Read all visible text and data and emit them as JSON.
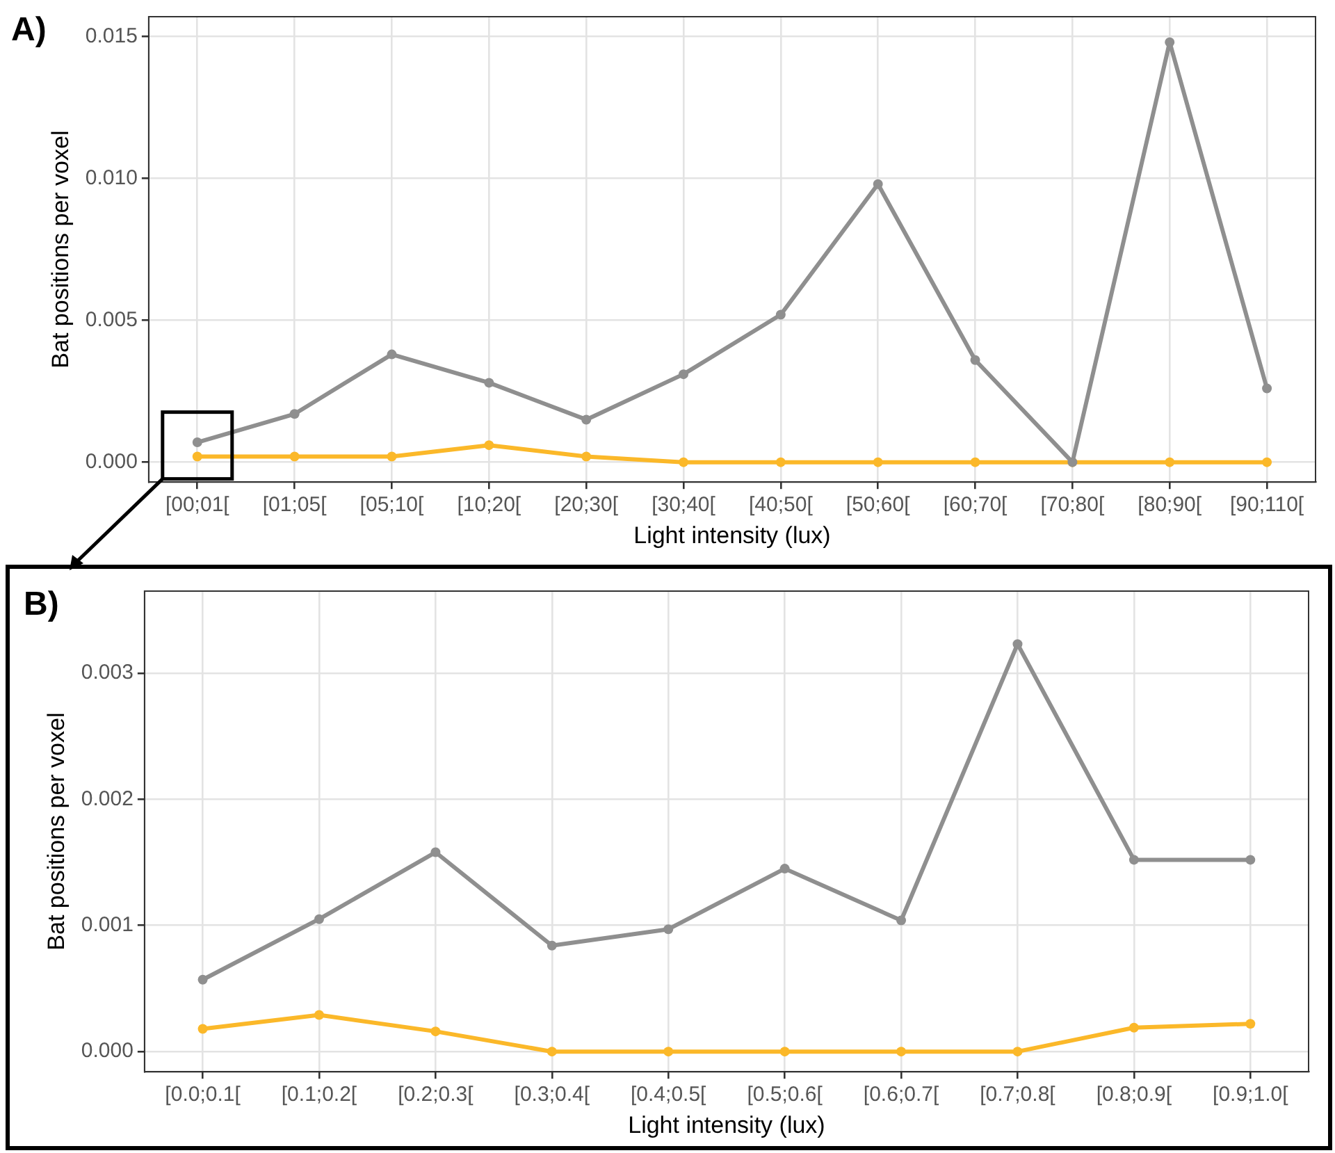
{
  "chart_data": [
    {
      "type": "line",
      "annotations": [
        "A)"
      ],
      "xlabel": "Light intensity (lux)",
      "ylabel": "Bat positions per voxel",
      "categories": [
        "[00;01[",
        "[01;05[",
        "[05;10[",
        "[10;20[",
        "[20;30[",
        "[30;40[",
        "[40;50[",
        "[50;60[",
        "[60;70[",
        "[70;80[",
        "[80;90[",
        "[90;110["
      ],
      "series": [
        {
          "color": "#8f8f8f",
          "values": [
            0.0007,
            0.0017,
            0.0038,
            0.0028,
            0.0015,
            0.0031,
            0.0052,
            0.0098,
            0.0036,
            0.0,
            0.0148,
            0.0026
          ]
        },
        {
          "color": "#fbb829",
          "values": [
            0.0002,
            0.0002,
            0.0002,
            0.0006,
            0.0002,
            0.0,
            0.0,
            0.0,
            0.0,
            0.0,
            0.0,
            0.0
          ]
        }
      ],
      "ylim": [
        -0.0007,
        0.0157
      ],
      "yticks": [
        {
          "value": 0,
          "label": "0.000"
        },
        {
          "value": 0.005,
          "label": "0.005"
        },
        {
          "value": 0.01,
          "label": "0.010"
        },
        {
          "value": 0.015,
          "label": "0.015"
        }
      ],
      "grid": true,
      "legend": false,
      "marker": "circle",
      "line_style": "solid"
    },
    {
      "type": "line",
      "annotations": [
        "B)"
      ],
      "xlabel": "Light intensity (lux)",
      "ylabel": "Bat positions per voxel",
      "categories": [
        "[0.0;0.1[",
        "[0.1;0.2[",
        "[0.2;0.3[",
        "[0.3;0.4[",
        "[0.4;0.5[",
        "[0.5;0.6[",
        "[0.6;0.7[",
        "[0.7;0.8[",
        "[0.8;0.9[",
        "[0.9;1.0["
      ],
      "series": [
        {
          "color": "#8f8f8f",
          "values": [
            0.00057,
            0.00105,
            0.00158,
            0.00084,
            0.00097,
            0.00145,
            0.00104,
            0.00323,
            0.00152,
            0.00152
          ]
        },
        {
          "color": "#fbb829",
          "values": [
            0.00018,
            0.00029,
            0.00016,
            0.0,
            0.0,
            0.0,
            0.0,
            0.0,
            0.00019,
            0.00022
          ]
        }
      ],
      "ylim": [
        -0.00016,
        0.00365
      ],
      "yticks": [
        {
          "value": 0,
          "label": "0.000"
        },
        {
          "value": 0.001,
          "label": "0.001"
        },
        {
          "value": 0.002,
          "label": "0.002"
        },
        {
          "value": 0.003,
          "label": "0.003"
        }
      ],
      "grid": true,
      "legend": false,
      "marker": "circle",
      "line_style": "solid"
    }
  ]
}
